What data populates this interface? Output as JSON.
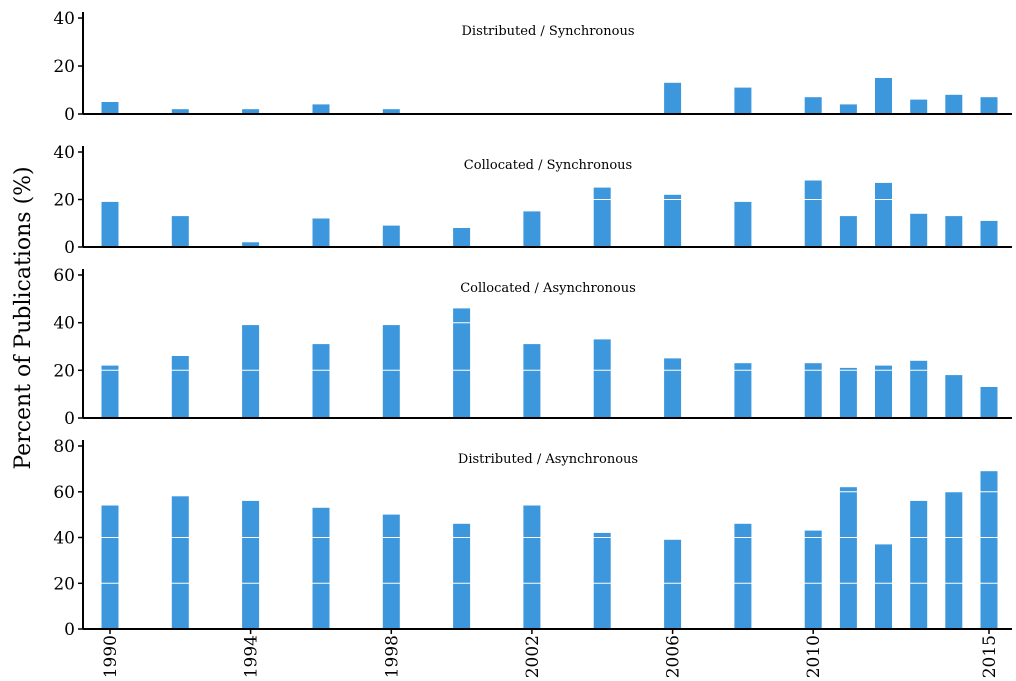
{
  "chart_data": {
    "type": "bar",
    "ylabel": "Percent of Publications (%)",
    "xlabel": "",
    "bar_color": "#3d97dc",
    "grid_color": "#ffffff",
    "x_tick_labels": [
      "1990",
      "1994",
      "1998",
      "2002",
      "2006",
      "2010",
      "2015"
    ],
    "x_tick_values": [
      1990,
      1994,
      1998,
      2002,
      2006,
      2010,
      2015
    ],
    "xlim": [
      1989.5,
      2015.5
    ],
    "panels": [
      {
        "title": "Distributed / Synchronous",
        "ylim": [
          0,
          40
        ],
        "yticks": [
          0,
          20,
          40
        ],
        "x": [
          1990,
          1992,
          1994,
          1996,
          1998,
          2006,
          2008,
          2010,
          2011,
          2012,
          2013,
          2014,
          2015
        ],
        "values": [
          5,
          2,
          2,
          4,
          2,
          13,
          11,
          7,
          4,
          15,
          6,
          8,
          7
        ]
      },
      {
        "title": "Collocated / Synchronous",
        "ylim": [
          0,
          40
        ],
        "yticks": [
          0,
          20,
          40
        ],
        "x": [
          1990,
          1992,
          1994,
          1996,
          1998,
          2000,
          2002,
          2004,
          2006,
          2008,
          2010,
          2011,
          2012,
          2013,
          2014,
          2015
        ],
        "values": [
          19,
          13,
          2,
          12,
          9,
          8,
          15,
          25,
          22,
          19,
          28,
          13,
          27,
          14,
          13,
          11
        ]
      },
      {
        "title": "Collocated / Asynchronous",
        "ylim": [
          0,
          60
        ],
        "yticks": [
          0,
          20,
          40,
          60
        ],
        "x": [
          1990,
          1992,
          1994,
          1996,
          1998,
          2000,
          2002,
          2004,
          2006,
          2008,
          2010,
          2011,
          2012,
          2013,
          2014,
          2015
        ],
        "values": [
          22,
          26,
          39,
          31,
          39,
          46,
          31,
          33,
          25,
          23,
          23,
          21,
          22,
          24,
          18,
          13
        ]
      },
      {
        "title": "Distributed / Asynchronous",
        "ylim": [
          0,
          80
        ],
        "yticks": [
          0,
          20,
          40,
          60,
          80
        ],
        "x": [
          1990,
          1992,
          1994,
          1996,
          1998,
          2000,
          2002,
          2004,
          2006,
          2008,
          2010,
          2011,
          2012,
          2013,
          2014,
          2015
        ],
        "values": [
          54,
          58,
          56,
          53,
          50,
          46,
          54,
          42,
          39,
          46,
          43,
          62,
          37,
          56,
          60,
          69
        ]
      }
    ]
  }
}
